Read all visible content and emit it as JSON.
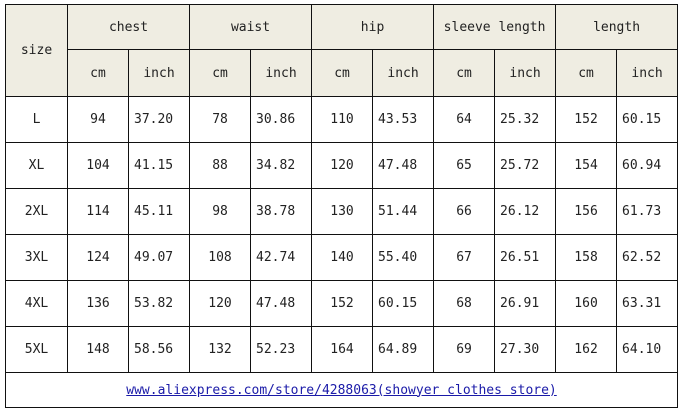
{
  "table": {
    "size_header": "size",
    "groups": [
      "chest",
      "waist",
      "hip",
      "sleeve length",
      "length"
    ],
    "units": [
      "cm",
      "inch"
    ],
    "rows": [
      {
        "size": "L",
        "values": [
          "94",
          "37.20",
          "78",
          "30.86",
          "110",
          "43.53",
          "64",
          "25.32",
          "152",
          "60.15"
        ]
      },
      {
        "size": "XL",
        "values": [
          "104",
          "41.15",
          "88",
          "34.82",
          "120",
          "47.48",
          "65",
          "25.72",
          "154",
          "60.94"
        ]
      },
      {
        "size": "2XL",
        "values": [
          "114",
          "45.11",
          "98",
          "38.78",
          "130",
          "51.44",
          "66",
          "26.12",
          "156",
          "61.73"
        ]
      },
      {
        "size": "3XL",
        "values": [
          "124",
          "49.07",
          "108",
          "42.74",
          "140",
          "55.40",
          "67",
          "26.51",
          "158",
          "62.52"
        ]
      },
      {
        "size": "4XL",
        "values": [
          "136",
          "53.82",
          "120",
          "47.48",
          "152",
          "60.15",
          "68",
          "26.91",
          "160",
          "63.31"
        ]
      },
      {
        "size": "5XL",
        "values": [
          "148",
          "58.56",
          "132",
          "52.23",
          "164",
          "64.89",
          "69",
          "27.30",
          "162",
          "64.10"
        ]
      }
    ],
    "footer_link": "www.aliexpress.com/store/4288063(showyer clothes store)"
  }
}
